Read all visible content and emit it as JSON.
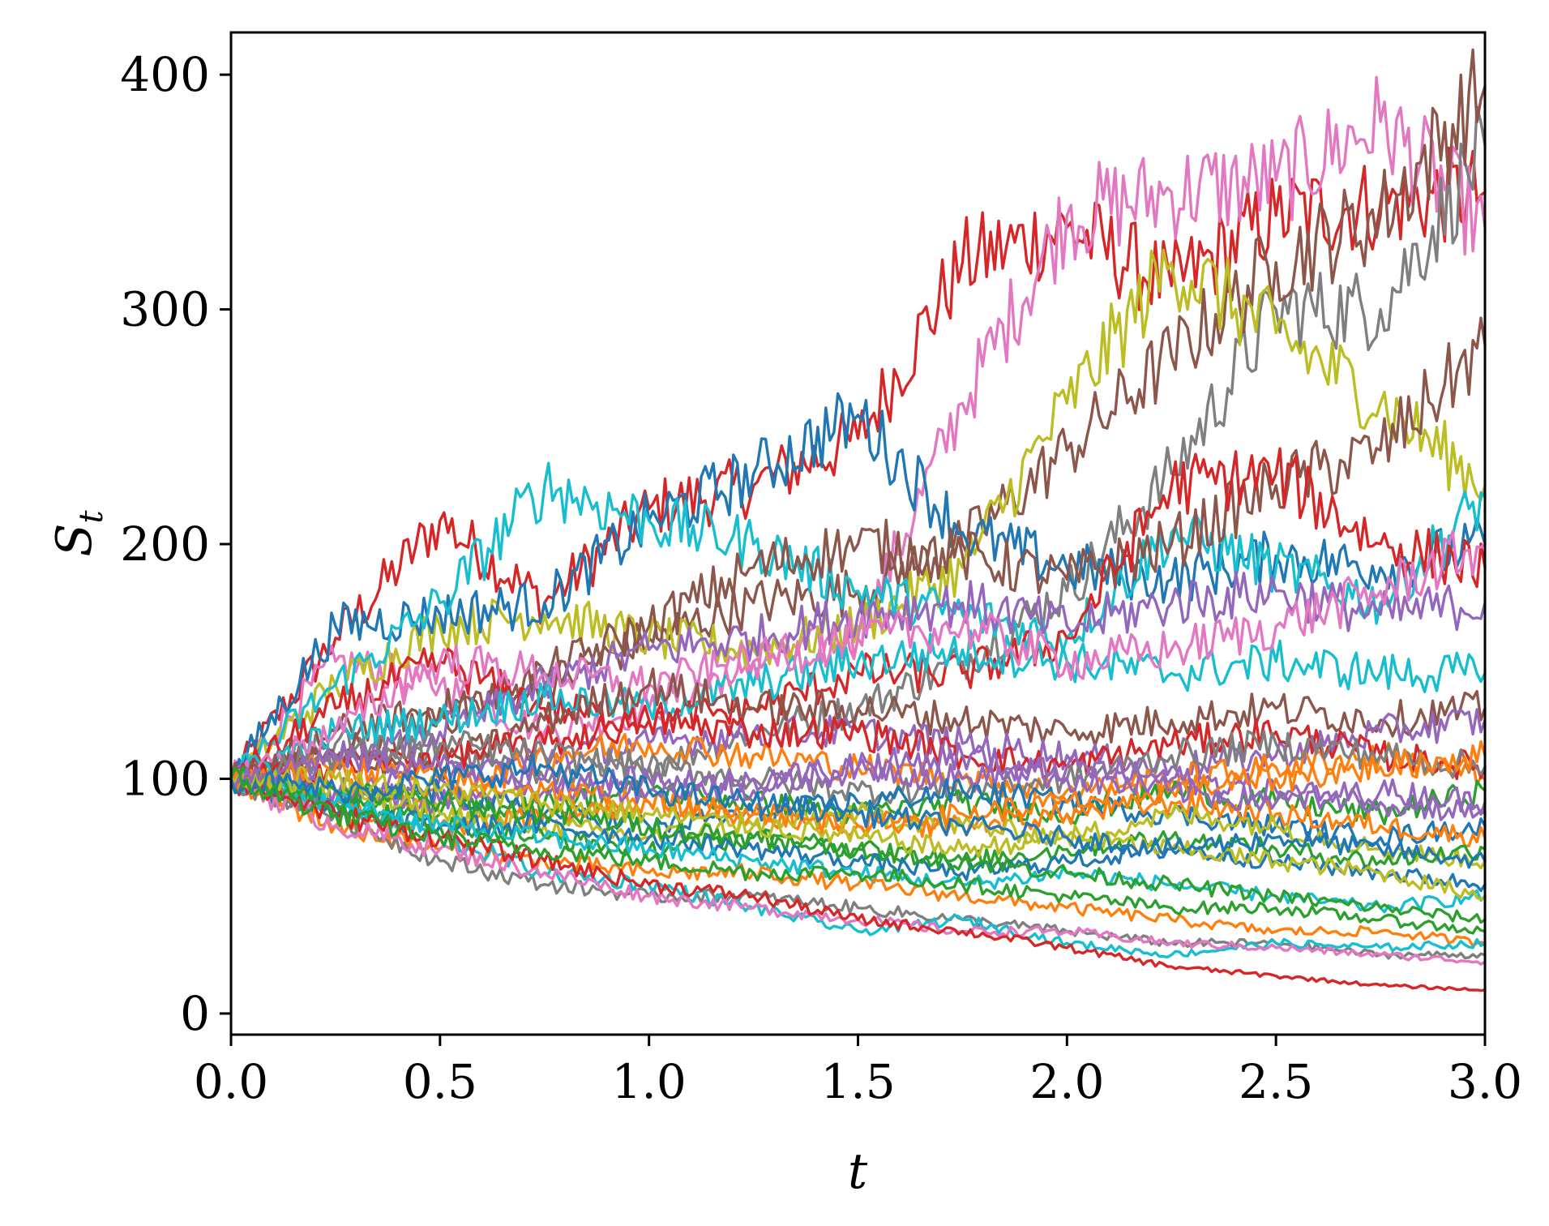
{
  "chart_data": {
    "type": "line",
    "title": "",
    "xlabel": "t",
    "ylabel": {
      "main": "S",
      "sub": "t"
    },
    "xlim": [
      0,
      3
    ],
    "ylim": [
      -9,
      418
    ],
    "x_ticks": [
      0,
      0.5,
      1,
      1.5,
      2,
      2.5,
      3
    ],
    "x_tick_labels": [
      "0.0",
      "0.5",
      "1.0",
      "1.5",
      "2.0",
      "2.5",
      "3.0"
    ],
    "y_ticks": [
      0,
      100,
      200,
      300,
      400
    ],
    "y_tick_labels": [
      "0",
      "100",
      "200",
      "300",
      "400"
    ],
    "grid": false,
    "legend": "none",
    "x": [
      0,
      0.25,
      0.5,
      0.75,
      1.0,
      1.25,
      1.5,
      1.75,
      2.0,
      2.25,
      2.5,
      2.75,
      3.0
    ],
    "series": [
      {
        "color": "#d62728",
        "values": [
          100,
          160,
          210,
          175,
          215,
          225,
          245,
          320,
          335,
          310,
          340,
          345,
          350
        ]
      },
      {
        "color": "#e377c2",
        "values": [
          100,
          150,
          140,
          120,
          130,
          150,
          160,
          260,
          340,
          350,
          355,
          380,
          335
        ]
      },
      {
        "color": "#7f7f7f",
        "values": [
          100,
          115,
          110,
          100,
          105,
          120,
          130,
          150,
          180,
          230,
          300,
          300,
          370
        ]
      },
      {
        "color": "#8c564b",
        "values": [
          100,
          120,
          130,
          140,
          160,
          175,
          180,
          200,
          240,
          280,
          320,
          340,
          395
        ]
      },
      {
        "color": "#bcbd22",
        "values": [
          100,
          140,
          165,
          170,
          160,
          155,
          165,
          190,
          260,
          320,
          290,
          260,
          225
        ]
      },
      {
        "color": "#1f77b4",
        "values": [
          100,
          165,
          170,
          175,
          210,
          230,
          255,
          205,
          190,
          185,
          195,
          190,
          200
        ]
      },
      {
        "color": "#17becf",
        "values": [
          100,
          140,
          175,
          225,
          210,
          200,
          180,
          170,
          160,
          205,
          190,
          175,
          220
        ]
      },
      {
        "color": "#8c564b",
        "values": [
          100,
          110,
          125,
          145,
          165,
          190,
          200,
          195,
          185,
          200,
          225,
          240,
          285
        ]
      },
      {
        "color": "#d62728",
        "values": [
          100,
          130,
          150,
          130,
          125,
          130,
          145,
          145,
          160,
          225,
          230,
          200,
          190
        ]
      },
      {
        "color": "#9467bd",
        "values": [
          100,
          105,
          120,
          140,
          155,
          160,
          170,
          175,
          165,
          175,
          180,
          170,
          175
        ]
      },
      {
        "color": "#17becf",
        "values": [
          100,
          120,
          125,
          135,
          130,
          140,
          150,
          155,
          150,
          145,
          150,
          145,
          145
        ]
      },
      {
        "color": "#e377c2",
        "values": [
          100,
          120,
          150,
          145,
          140,
          150,
          160,
          165,
          150,
          155,
          165,
          180,
          200
        ]
      },
      {
        "color": "#8c564b",
        "values": [
          100,
          110,
          105,
          125,
          140,
          130,
          130,
          125,
          120,
          125,
          130,
          125,
          130
        ]
      },
      {
        "color": "#9467bd",
        "values": [
          100,
          95,
          100,
          110,
          115,
          120,
          120,
          115,
          110,
          105,
          110,
          120,
          125
        ]
      },
      {
        "color": "#ff7f0e",
        "values": [
          100,
          95,
          90,
          110,
          115,
          110,
          105,
          100,
          95,
          100,
          105,
          110,
          100
        ]
      },
      {
        "color": "#d62728",
        "values": [
          100,
          105,
          110,
          115,
          125,
          120,
          120,
          110,
          105,
          115,
          120,
          110,
          105
        ]
      },
      {
        "color": "#7f7f7f",
        "values": [
          100,
          110,
          115,
          110,
          105,
          100,
          95,
          95,
          100,
          110,
          115,
          110,
          105
        ]
      },
      {
        "color": "#2ca02c",
        "values": [
          100,
          90,
          85,
          90,
          95,
          90,
          85,
          90,
          85,
          95,
          90,
          85,
          95
        ]
      },
      {
        "color": "#9467bd",
        "values": [
          100,
          95,
          90,
          95,
          100,
          95,
          105,
          100,
          105,
          100,
          95,
          90,
          85
        ]
      },
      {
        "color": "#1f77b4",
        "values": [
          100,
          90,
          95,
          85,
          80,
          85,
          90,
          95,
          90,
          85,
          80,
          75,
          80
        ]
      },
      {
        "color": "#ff7f0e",
        "values": [
          100,
          85,
          80,
          85,
          90,
          85,
          80,
          80,
          85,
          90,
          85,
          80,
          75
        ]
      },
      {
        "color": "#bcbd22",
        "values": [
          100,
          95,
          85,
          80,
          75,
          80,
          85,
          80,
          75,
          85,
          80,
          70,
          65
        ]
      },
      {
        "color": "#2ca02c",
        "values": [
          100,
          90,
          80,
          75,
          70,
          75,
          70,
          65,
          70,
          75,
          70,
          65,
          70
        ]
      },
      {
        "color": "#1f77b4",
        "values": [
          100,
          85,
          80,
          80,
          75,
          70,
          65,
          60,
          65,
          70,
          65,
          60,
          55
        ]
      },
      {
        "color": "#17becf",
        "values": [
          100,
          90,
          80,
          75,
          70,
          65,
          60,
          55,
          60,
          55,
          50,
          45,
          50
        ]
      },
      {
        "color": "#ff7f0e",
        "values": [
          100,
          80,
          70,
          65,
          60,
          60,
          55,
          50,
          45,
          40,
          35,
          35,
          30
        ]
      },
      {
        "color": "#7f7f7f",
        "values": [
          100,
          85,
          65,
          55,
          50,
          50,
          45,
          40,
          35,
          30,
          30,
          25,
          25
        ]
      },
      {
        "color": "#17becf",
        "values": [
          100,
          90,
          75,
          60,
          55,
          45,
          35,
          40,
          30,
          25,
          30,
          28,
          30
        ]
      },
      {
        "color": "#e377c2",
        "values": [
          100,
          80,
          70,
          60,
          50,
          45,
          40,
          35,
          35,
          30,
          28,
          25,
          22
        ]
      },
      {
        "color": "#d62728",
        "values": [
          100,
          85,
          75,
          65,
          55,
          50,
          40,
          35,
          28,
          20,
          16,
          12,
          10
        ]
      },
      {
        "color": "#2ca02c",
        "values": [
          100,
          95,
          90,
          85,
          80,
          75,
          70,
          65,
          60,
          55,
          50,
          45,
          40
        ]
      },
      {
        "color": "#ff7f0e",
        "values": [
          100,
          105,
          100,
          95,
          90,
          85,
          80,
          85,
          90,
          95,
          100,
          105,
          110
        ]
      },
      {
        "color": "#bcbd22",
        "values": [
          100,
          100,
          95,
          90,
          85,
          80,
          75,
          70,
          75,
          70,
          65,
          60,
          50
        ]
      },
      {
        "color": "#9467bd",
        "values": [
          100,
          110,
          105,
          100,
          95,
          100,
          105,
          110,
          100,
          95,
          90,
          95,
          90
        ]
      },
      {
        "color": "#1f77b4",
        "values": [
          100,
          95,
          100,
          105,
          95,
          90,
          85,
          80,
          75,
          70,
          75,
          70,
          65
        ]
      },
      {
        "color": "#2ca02c",
        "values": [
          100,
          85,
          75,
          70,
          65,
          60,
          60,
          55,
          50,
          45,
          45,
          40,
          35
        ]
      }
    ]
  }
}
